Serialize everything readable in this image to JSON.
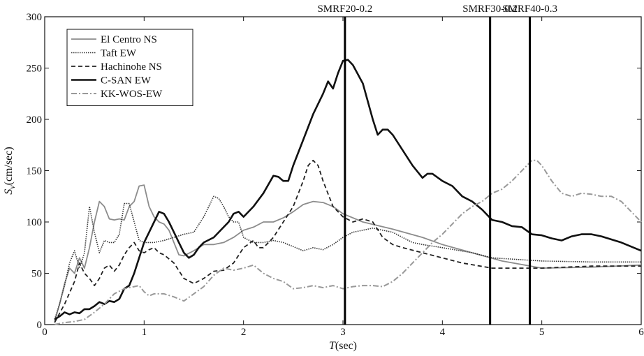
{
  "chart_data": {
    "type": "line",
    "title": "",
    "xlabel": {
      "italic": "T",
      "unit": "(sec)"
    },
    "ylabel": {
      "italic": "S",
      "sub": "v",
      "unit": "(cm/sec)"
    },
    "xlim": [
      0,
      6
    ],
    "ylim": [
      0,
      300
    ],
    "xticks": [
      0,
      1,
      2,
      3,
      4,
      5,
      6
    ],
    "yticks": [
      0,
      50,
      100,
      150,
      200,
      250,
      300
    ],
    "grid": false,
    "legend_position": "top-left",
    "markers": [
      {
        "label": "SMRF20-0.2",
        "x": 3.02
      },
      {
        "label": "SMRF30-0.2",
        "x": 4.48
      },
      {
        "label": "SMRF40-0.3",
        "x": 4.88
      }
    ],
    "series": [
      {
        "name": "El Centro NS",
        "color": "#8c8c8c",
        "dash": "",
        "width": 1.8,
        "points": [
          [
            0.1,
            3
          ],
          [
            0.15,
            20
          ],
          [
            0.2,
            40
          ],
          [
            0.25,
            55
          ],
          [
            0.3,
            50
          ],
          [
            0.35,
            65
          ],
          [
            0.4,
            55
          ],
          [
            0.45,
            75
          ],
          [
            0.5,
            100
          ],
          [
            0.55,
            120
          ],
          [
            0.6,
            115
          ],
          [
            0.65,
            103
          ],
          [
            0.7,
            102
          ],
          [
            0.75,
            103
          ],
          [
            0.8,
            102
          ],
          [
            0.85,
            115
          ],
          [
            0.9,
            120
          ],
          [
            0.95,
            135
          ],
          [
            1.0,
            136
          ],
          [
            1.05,
            115
          ],
          [
            1.1,
            105
          ],
          [
            1.15,
            100
          ],
          [
            1.2,
            98
          ],
          [
            1.25,
            92
          ],
          [
            1.3,
            80
          ],
          [
            1.35,
            68
          ],
          [
            1.4,
            67
          ],
          [
            1.5,
            72
          ],
          [
            1.6,
            78
          ],
          [
            1.7,
            78
          ],
          [
            1.8,
            80
          ],
          [
            1.9,
            85
          ],
          [
            2.0,
            92
          ],
          [
            2.1,
            95
          ],
          [
            2.2,
            100
          ],
          [
            2.3,
            100
          ],
          [
            2.4,
            104
          ],
          [
            2.5,
            110
          ],
          [
            2.6,
            117
          ],
          [
            2.7,
            120
          ],
          [
            2.8,
            119
          ],
          [
            2.9,
            115
          ],
          [
            3.0,
            108
          ],
          [
            3.2,
            100
          ],
          [
            3.5,
            93
          ],
          [
            3.8,
            85
          ],
          [
            4.0,
            78
          ],
          [
            4.3,
            70
          ],
          [
            4.6,
            62
          ],
          [
            5.0,
            55
          ],
          [
            5.5,
            56
          ],
          [
            6.0,
            58
          ]
        ]
      },
      {
        "name": "Taft EW",
        "color": "#333333",
        "dash": "1.5,1.5",
        "width": 1.6,
        "points": [
          [
            0.1,
            5
          ],
          [
            0.15,
            20
          ],
          [
            0.2,
            38
          ],
          [
            0.25,
            60
          ],
          [
            0.3,
            72
          ],
          [
            0.35,
            55
          ],
          [
            0.4,
            70
          ],
          [
            0.45,
            115
          ],
          [
            0.5,
            90
          ],
          [
            0.55,
            70
          ],
          [
            0.6,
            82
          ],
          [
            0.65,
            80
          ],
          [
            0.7,
            80
          ],
          [
            0.75,
            88
          ],
          [
            0.8,
            118
          ],
          [
            0.85,
            118
          ],
          [
            0.9,
            100
          ],
          [
            0.95,
            82
          ],
          [
            1.0,
            80
          ],
          [
            1.1,
            80
          ],
          [
            1.2,
            82
          ],
          [
            1.3,
            85
          ],
          [
            1.4,
            88
          ],
          [
            1.5,
            90
          ],
          [
            1.6,
            105
          ],
          [
            1.7,
            125
          ],
          [
            1.75,
            123
          ],
          [
            1.8,
            115
          ],
          [
            1.85,
            105
          ],
          [
            1.9,
            100
          ],
          [
            1.95,
            100
          ],
          [
            2.0,
            85
          ],
          [
            2.1,
            80
          ],
          [
            2.2,
            80
          ],
          [
            2.3,
            82
          ],
          [
            2.4,
            80
          ],
          [
            2.5,
            76
          ],
          [
            2.6,
            72
          ],
          [
            2.7,
            75
          ],
          [
            2.8,
            73
          ],
          [
            2.9,
            78
          ],
          [
            3.0,
            85
          ],
          [
            3.1,
            90
          ],
          [
            3.2,
            92
          ],
          [
            3.3,
            94
          ],
          [
            3.4,
            92
          ],
          [
            3.5,
            90
          ],
          [
            3.6,
            85
          ],
          [
            3.7,
            80
          ],
          [
            3.8,
            78
          ],
          [
            4.0,
            75
          ],
          [
            4.3,
            70
          ],
          [
            4.5,
            65
          ],
          [
            5.0,
            62
          ],
          [
            5.5,
            61
          ],
          [
            6.0,
            61
          ]
        ]
      },
      {
        "name": "Hachinohe NS",
        "color": "#222222",
        "dash": "6,4",
        "width": 1.8,
        "points": [
          [
            0.1,
            2
          ],
          [
            0.2,
            20
          ],
          [
            0.3,
            42
          ],
          [
            0.35,
            60
          ],
          [
            0.4,
            50
          ],
          [
            0.45,
            45
          ],
          [
            0.5,
            38
          ],
          [
            0.55,
            45
          ],
          [
            0.6,
            55
          ],
          [
            0.65,
            58
          ],
          [
            0.7,
            52
          ],
          [
            0.75,
            58
          ],
          [
            0.8,
            68
          ],
          [
            0.85,
            75
          ],
          [
            0.9,
            80
          ],
          [
            0.95,
            72
          ],
          [
            1.0,
            70
          ],
          [
            1.05,
            73
          ],
          [
            1.1,
            75
          ],
          [
            1.15,
            70
          ],
          [
            1.2,
            68
          ],
          [
            1.3,
            60
          ],
          [
            1.4,
            45
          ],
          [
            1.5,
            40
          ],
          [
            1.6,
            45
          ],
          [
            1.7,
            52
          ],
          [
            1.8,
            53
          ],
          [
            1.9,
            60
          ],
          [
            2.0,
            75
          ],
          [
            2.1,
            82
          ],
          [
            2.15,
            75
          ],
          [
            2.2,
            75
          ],
          [
            2.3,
            85
          ],
          [
            2.4,
            100
          ],
          [
            2.5,
            115
          ],
          [
            2.6,
            140
          ],
          [
            2.65,
            155
          ],
          [
            2.7,
            160
          ],
          [
            2.75,
            155
          ],
          [
            2.8,
            140
          ],
          [
            2.9,
            115
          ],
          [
            3.0,
            105
          ],
          [
            3.1,
            100
          ],
          [
            3.2,
            103
          ],
          [
            3.3,
            100
          ],
          [
            3.4,
            85
          ],
          [
            3.5,
            78
          ],
          [
            3.6,
            75
          ],
          [
            3.8,
            70
          ],
          [
            4.0,
            65
          ],
          [
            4.2,
            60
          ],
          [
            4.5,
            55
          ],
          [
            5.0,
            55
          ],
          [
            5.5,
            57
          ],
          [
            6.0,
            57
          ]
        ]
      },
      {
        "name": "C-SAN EW",
        "color": "#111111",
        "dash": "",
        "width": 2.6,
        "points": [
          [
            0.1,
            5
          ],
          [
            0.15,
            8
          ],
          [
            0.2,
            12
          ],
          [
            0.25,
            10
          ],
          [
            0.3,
            12
          ],
          [
            0.35,
            11
          ],
          [
            0.4,
            15
          ],
          [
            0.45,
            15
          ],
          [
            0.5,
            18
          ],
          [
            0.55,
            22
          ],
          [
            0.6,
            20
          ],
          [
            0.65,
            23
          ],
          [
            0.7,
            22
          ],
          [
            0.75,
            25
          ],
          [
            0.8,
            35
          ],
          [
            0.85,
            38
          ],
          [
            0.9,
            50
          ],
          [
            0.95,
            65
          ],
          [
            1.0,
            80
          ],
          [
            1.05,
            90
          ],
          [
            1.1,
            100
          ],
          [
            1.15,
            110
          ],
          [
            1.2,
            108
          ],
          [
            1.25,
            100
          ],
          [
            1.3,
            90
          ],
          [
            1.35,
            80
          ],
          [
            1.4,
            70
          ],
          [
            1.45,
            65
          ],
          [
            1.5,
            68
          ],
          [
            1.55,
            75
          ],
          [
            1.6,
            80
          ],
          [
            1.7,
            85
          ],
          [
            1.8,
            95
          ],
          [
            1.85,
            100
          ],
          [
            1.9,
            108
          ],
          [
            1.95,
            110
          ],
          [
            2.0,
            105
          ],
          [
            2.1,
            115
          ],
          [
            2.2,
            128
          ],
          [
            2.3,
            145
          ],
          [
            2.35,
            144
          ],
          [
            2.4,
            140
          ],
          [
            2.45,
            140
          ],
          [
            2.5,
            155
          ],
          [
            2.6,
            180
          ],
          [
            2.7,
            205
          ],
          [
            2.8,
            225
          ],
          [
            2.85,
            237
          ],
          [
            2.9,
            230
          ],
          [
            2.95,
            245
          ],
          [
            3.0,
            257
          ],
          [
            3.05,
            258
          ],
          [
            3.1,
            253
          ],
          [
            3.2,
            235
          ],
          [
            3.3,
            200
          ],
          [
            3.35,
            185
          ],
          [
            3.4,
            190
          ],
          [
            3.45,
            190
          ],
          [
            3.5,
            185
          ],
          [
            3.6,
            170
          ],
          [
            3.7,
            155
          ],
          [
            3.8,
            143
          ],
          [
            3.85,
            147
          ],
          [
            3.9,
            147
          ],
          [
            4.0,
            140
          ],
          [
            4.1,
            135
          ],
          [
            4.2,
            125
          ],
          [
            4.3,
            120
          ],
          [
            4.4,
            112
          ],
          [
            4.5,
            102
          ],
          [
            4.6,
            100
          ],
          [
            4.7,
            96
          ],
          [
            4.8,
            95
          ],
          [
            4.9,
            88
          ],
          [
            5.0,
            87
          ],
          [
            5.1,
            84
          ],
          [
            5.2,
            82
          ],
          [
            5.3,
            86
          ],
          [
            5.4,
            88
          ],
          [
            5.5,
            88
          ],
          [
            5.6,
            86
          ],
          [
            5.7,
            83
          ],
          [
            5.8,
            80
          ],
          [
            6.0,
            72
          ]
        ]
      },
      {
        "name": "KK-WOS-EW",
        "color": "#999999",
        "dash": "8,3,2,3",
        "width": 2.0,
        "points": [
          [
            0.1,
            0
          ],
          [
            0.2,
            2
          ],
          [
            0.3,
            3
          ],
          [
            0.4,
            5
          ],
          [
            0.5,
            12
          ],
          [
            0.6,
            20
          ],
          [
            0.7,
            30
          ],
          [
            0.8,
            35
          ],
          [
            0.9,
            37
          ],
          [
            0.95,
            38
          ],
          [
            1.0,
            32
          ],
          [
            1.05,
            28
          ],
          [
            1.1,
            30
          ],
          [
            1.2,
            30
          ],
          [
            1.3,
            27
          ],
          [
            1.4,
            23
          ],
          [
            1.5,
            30
          ],
          [
            1.6,
            37
          ],
          [
            1.7,
            48
          ],
          [
            1.8,
            55
          ],
          [
            1.9,
            53
          ],
          [
            2.0,
            55
          ],
          [
            2.1,
            58
          ],
          [
            2.2,
            50
          ],
          [
            2.3,
            45
          ],
          [
            2.4,
            42
          ],
          [
            2.5,
            35
          ],
          [
            2.6,
            36
          ],
          [
            2.7,
            38
          ],
          [
            2.8,
            36
          ],
          [
            2.9,
            38
          ],
          [
            3.0,
            35
          ],
          [
            3.1,
            37
          ],
          [
            3.2,
            38
          ],
          [
            3.3,
            38
          ],
          [
            3.4,
            37
          ],
          [
            3.5,
            42
          ],
          [
            3.6,
            50
          ],
          [
            3.7,
            60
          ],
          [
            3.8,
            70
          ],
          [
            3.9,
            80
          ],
          [
            4.0,
            88
          ],
          [
            4.1,
            98
          ],
          [
            4.2,
            108
          ],
          [
            4.3,
            115
          ],
          [
            4.4,
            120
          ],
          [
            4.5,
            128
          ],
          [
            4.6,
            132
          ],
          [
            4.7,
            140
          ],
          [
            4.8,
            150
          ],
          [
            4.9,
            160
          ],
          [
            4.95,
            160
          ],
          [
            5.0,
            155
          ],
          [
            5.1,
            140
          ],
          [
            5.2,
            128
          ],
          [
            5.3,
            125
          ],
          [
            5.4,
            128
          ],
          [
            5.5,
            127
          ],
          [
            5.6,
            125
          ],
          [
            5.7,
            125
          ],
          [
            5.8,
            120
          ],
          [
            5.9,
            110
          ],
          [
            6.0,
            100
          ]
        ]
      }
    ]
  }
}
